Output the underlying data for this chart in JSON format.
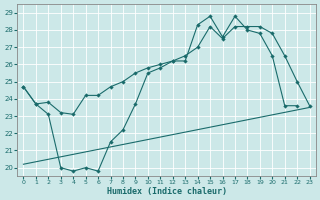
{
  "xlabel": "Humidex (Indice chaleur)",
  "xlim": [
    -0.5,
    23.5
  ],
  "ylim": [
    19.5,
    29.5
  ],
  "yticks": [
    20,
    21,
    22,
    23,
    24,
    25,
    26,
    27,
    28,
    29
  ],
  "xticks": [
    0,
    1,
    2,
    3,
    4,
    5,
    6,
    7,
    8,
    9,
    10,
    11,
    12,
    13,
    14,
    15,
    16,
    17,
    18,
    19,
    20,
    21,
    22,
    23
  ],
  "background_color": "#cce8e8",
  "line_color": "#1a6b6b",
  "grid_color": "#b8d8d8",
  "series1_x": [
    0,
    1,
    2,
    3,
    4,
    5,
    6,
    7,
    8,
    9,
    10,
    11,
    12,
    13,
    14,
    15,
    16,
    17,
    18,
    19,
    20,
    21,
    22
  ],
  "series1_y": [
    24.7,
    23.7,
    23.1,
    20.0,
    19.8,
    20.0,
    19.8,
    21.5,
    22.2,
    23.7,
    25.5,
    25.8,
    26.2,
    26.2,
    28.3,
    28.8,
    27.6,
    28.8,
    28.0,
    27.8,
    26.5,
    23.6,
    23.6
  ],
  "series2_x": [
    0,
    1,
    2,
    3,
    4,
    5,
    6,
    7,
    8,
    9,
    10,
    11,
    12,
    13,
    14,
    15,
    16,
    17,
    18,
    19,
    20,
    21,
    22,
    23
  ],
  "series2_y": [
    24.7,
    23.7,
    23.8,
    23.2,
    23.1,
    24.2,
    24.2,
    24.7,
    25.0,
    25.5,
    25.8,
    26.0,
    26.2,
    26.5,
    27.0,
    28.2,
    27.5,
    28.2,
    28.2,
    28.2,
    27.8,
    26.5,
    25.0,
    23.6
  ],
  "series3_x": [
    0,
    23
  ],
  "series3_y": [
    20.2,
    23.5
  ]
}
